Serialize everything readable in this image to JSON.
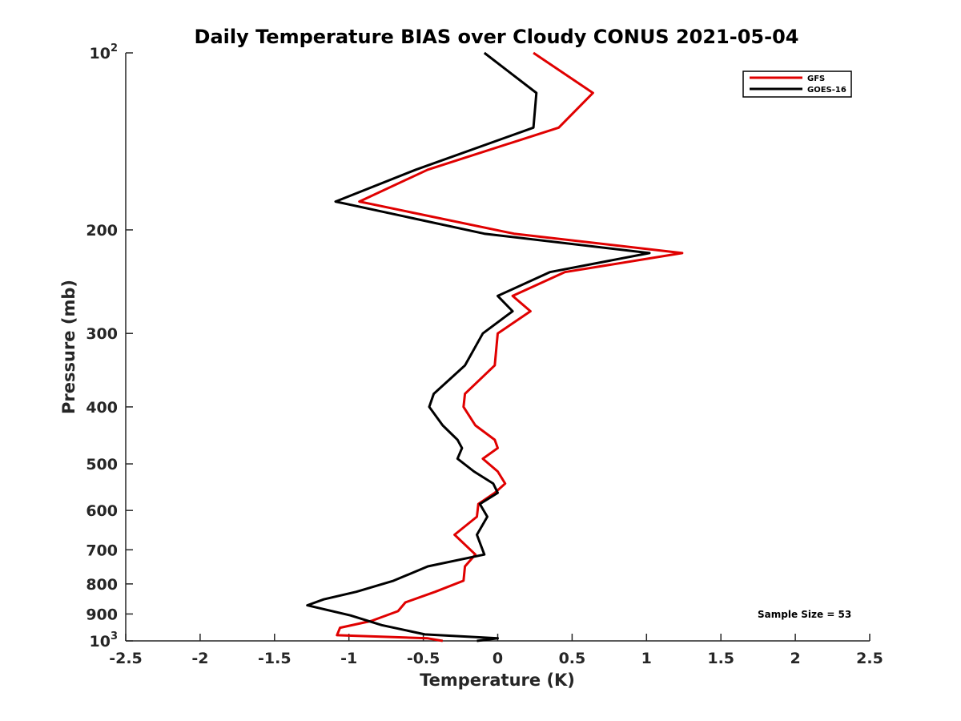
{
  "chart_data": {
    "type": "line",
    "title": "Daily Temperature BIAS over Cloudy CONUS 2021-05-04",
    "xlabel": "Temperature (K)",
    "ylabel": "Pressure (mb)",
    "xlim": [
      -2.5,
      2.5
    ],
    "ylim": [
      100,
      1000
    ],
    "y_scale": "log",
    "y_reversed": true,
    "grid": false,
    "legend_position": "top-right",
    "x_ticks": [
      -2.5,
      -2,
      -1.5,
      -1,
      -0.5,
      0,
      0.5,
      1,
      1.5,
      2,
      2.5
    ],
    "x_tick_labels": [
      "-2.5",
      "-2",
      "-1.5",
      "-1",
      "-0.5",
      "0",
      "0.5",
      "1",
      "1.5",
      "2",
      "2.5"
    ],
    "y_ticks": [
      {
        "value": 100,
        "base": "10",
        "exp": "2"
      },
      {
        "value": 200,
        "label": "200"
      },
      {
        "value": 300,
        "label": "300"
      },
      {
        "value": 400,
        "label": "400"
      },
      {
        "value": 500,
        "label": "500"
      },
      {
        "value": 600,
        "label": "600"
      },
      {
        "value": 700,
        "label": "700"
      },
      {
        "value": 800,
        "label": "800"
      },
      {
        "value": 900,
        "label": "900"
      },
      {
        "value": 1000,
        "base": "10",
        "exp": "3"
      }
    ],
    "annotation": "Sample Size = 53",
    "series": [
      {
        "name": "GFS",
        "color": "#e00000",
        "points": [
          [
            0.24,
            100
          ],
          [
            0.64,
            117
          ],
          [
            0.41,
            134
          ],
          [
            -0.47,
            158
          ],
          [
            -0.93,
            179
          ],
          [
            0.11,
            203
          ],
          [
            1.24,
            219
          ],
          [
            0.45,
            236
          ],
          [
            0.1,
            259
          ],
          [
            0.22,
            275
          ],
          [
            0.0,
            300
          ],
          [
            -0.02,
            340
          ],
          [
            -0.22,
            380
          ],
          [
            -0.23,
            400
          ],
          [
            -0.15,
            430
          ],
          [
            -0.02,
            455
          ],
          [
            0.0,
            470
          ],
          [
            -0.1,
            490
          ],
          [
            0.0,
            515
          ],
          [
            0.05,
            540
          ],
          [
            -0.02,
            560
          ],
          [
            -0.13,
            585
          ],
          [
            -0.14,
            615
          ],
          [
            -0.29,
            660
          ],
          [
            -0.15,
            713
          ],
          [
            -0.22,
            747
          ],
          [
            -0.23,
            790
          ],
          [
            -0.42,
            825
          ],
          [
            -0.62,
            860
          ],
          [
            -0.67,
            890
          ],
          [
            -0.85,
            925
          ],
          [
            -1.06,
            950
          ],
          [
            -1.08,
            978
          ],
          [
            -0.47,
            990
          ],
          [
            -0.37,
            1000
          ]
        ]
      },
      {
        "name": "GOES-16",
        "color": "#000000",
        "points": [
          [
            -0.09,
            100
          ],
          [
            0.26,
            117
          ],
          [
            0.24,
            134
          ],
          [
            -0.55,
            158
          ],
          [
            -1.09,
            179
          ],
          [
            -0.09,
            203
          ],
          [
            1.02,
            219
          ],
          [
            0.35,
            236
          ],
          [
            0.0,
            259
          ],
          [
            0.1,
            275
          ],
          [
            -0.1,
            300
          ],
          [
            -0.22,
            340
          ],
          [
            -0.43,
            380
          ],
          [
            -0.46,
            400
          ],
          [
            -0.37,
            430
          ],
          [
            -0.27,
            455
          ],
          [
            -0.24,
            470
          ],
          [
            -0.27,
            490
          ],
          [
            -0.16,
            515
          ],
          [
            -0.03,
            540
          ],
          [
            0.0,
            560
          ],
          [
            -0.12,
            585
          ],
          [
            -0.07,
            615
          ],
          [
            -0.14,
            660
          ],
          [
            -0.09,
            713
          ],
          [
            -0.47,
            747
          ],
          [
            -0.7,
            790
          ],
          [
            -0.95,
            825
          ],
          [
            -1.17,
            850
          ],
          [
            -1.28,
            870
          ],
          [
            -0.99,
            905
          ],
          [
            -0.78,
            940
          ],
          [
            -0.49,
            975
          ],
          [
            0.0,
            990
          ],
          [
            -0.14,
            1000
          ]
        ]
      }
    ]
  }
}
